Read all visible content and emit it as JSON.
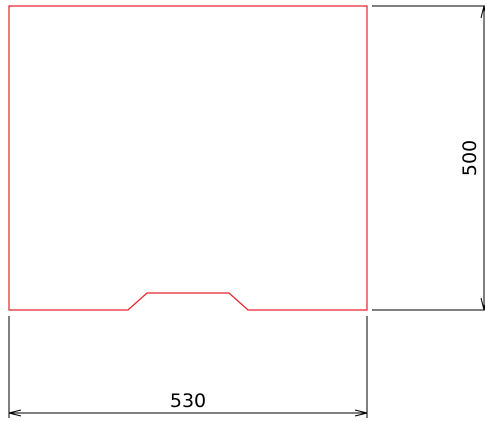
{
  "drawing": {
    "outline_color": "#e8202a",
    "dimension_color": "#000000",
    "width_dimension": "530",
    "height_dimension": "500"
  }
}
